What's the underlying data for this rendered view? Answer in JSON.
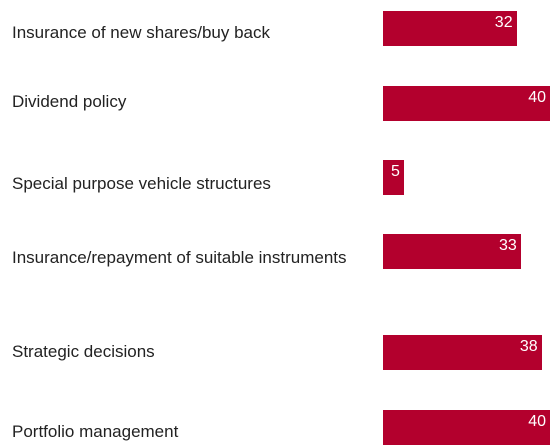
{
  "chart_data": {
    "type": "bar",
    "orientation": "horizontal",
    "categories": [
      "Insurance of new shares/buy back",
      "Dividend policy",
      "Special purpose vehicle structures",
      "Insurance/repayment of suitable instruments",
      "Strategic decisions",
      "Portfolio management"
    ],
    "values": [
      32,
      40,
      5,
      33,
      38,
      40
    ],
    "color": "#b3002d"
  }
}
